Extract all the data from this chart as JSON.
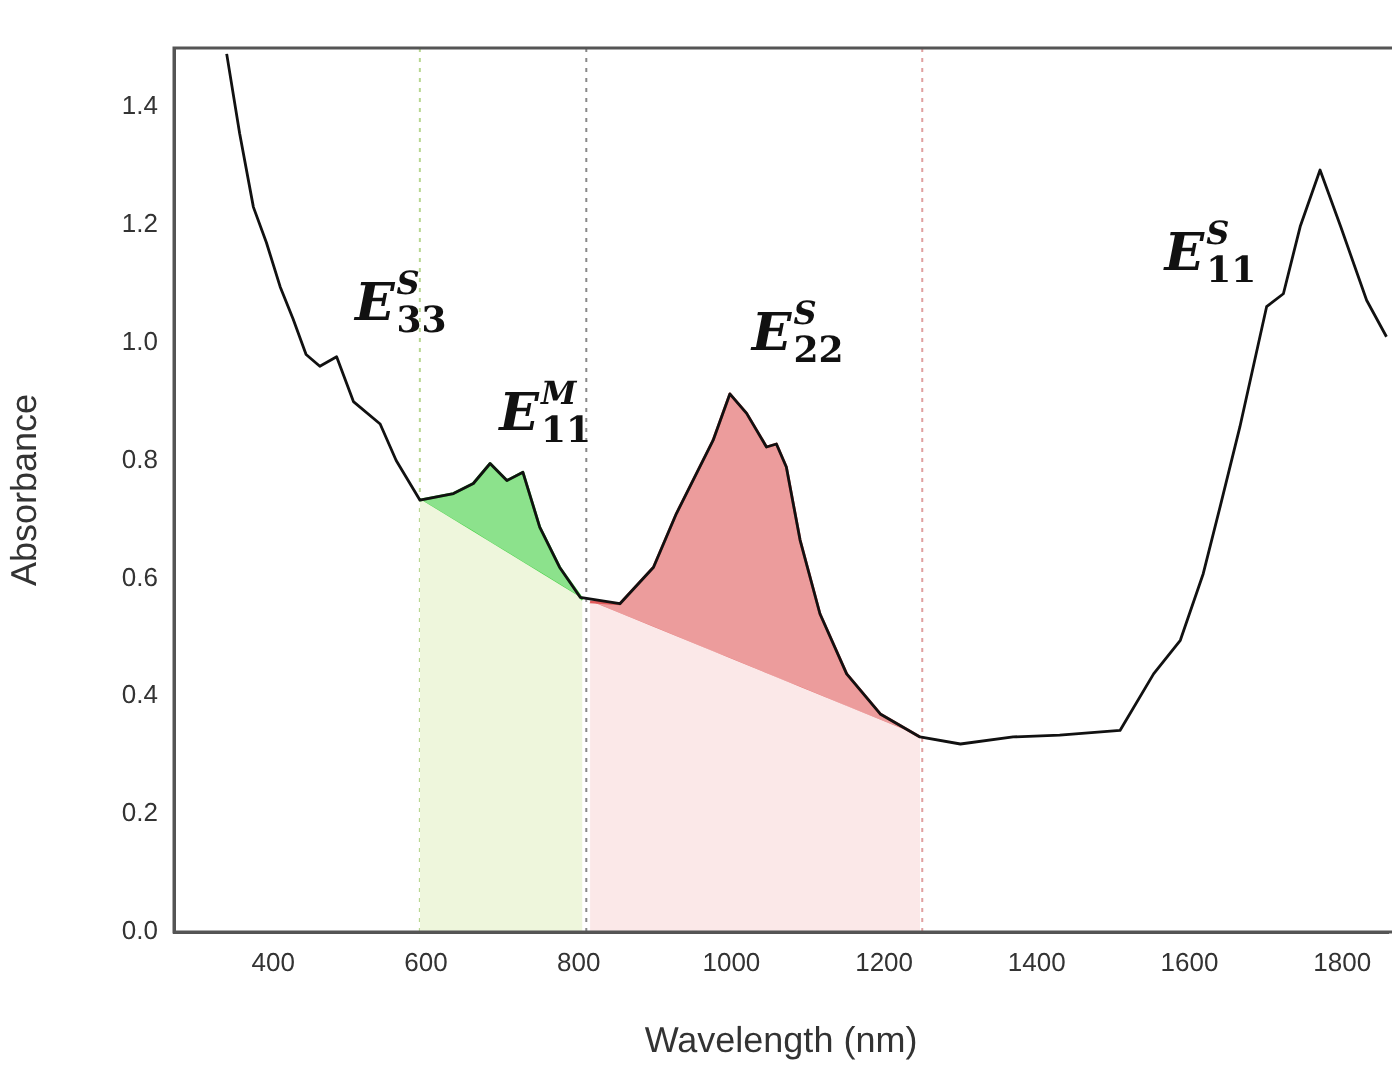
{
  "chart_data": {
    "type": "line",
    "xlabel": "Wavelength (nm)",
    "ylabel": "Absorbance",
    "xlim": [
      270,
      1860
    ],
    "ylim": [
      0,
      1.5
    ],
    "xticks": [
      400,
      600,
      800,
      1000,
      1200,
      1400,
      1600,
      1800
    ],
    "yticks": [
      {
        "value": 0,
        "label": "0.0"
      },
      0.2,
      0.4,
      0.6,
      0.8,
      {
        "value": 1,
        "label": "1.0"
      },
      1.2,
      1.4
    ],
    "grid": false,
    "series": [
      {
        "type": "area",
        "color": "#eef6dc",
        "x": [
          592,
          805
        ],
        "values": [
          0.733,
          0.564
        ]
      },
      {
        "type": "area",
        "color": "#fbe8e8",
        "x": [
          815,
          1247
        ],
        "values": [
          0.56,
          0.331
        ]
      },
      {
        "color": "#3fcf3f",
        "x": [
          592,
          636,
          662,
          684,
          706,
          727,
          749,
          775,
          805
        ],
        "values": [
          0.733,
          0.744,
          0.761,
          0.795,
          0.766,
          0.78,
          0.687,
          0.619,
          0.564
        ],
        "lower": [
          0.733,
          0.698,
          0.678,
          0.66,
          0.643,
          0.626,
          0.609,
          0.588,
          0.564
        ],
        "upper": [
          0.733,
          0.744,
          0.761,
          0.795,
          0.766,
          0.78,
          0.687,
          0.619,
          0.564
        ]
      },
      {
        "color": "#e05a5a",
        "x": [
          815,
          854,
          898,
          928,
          976,
          998,
          1020,
          1046,
          1059,
          1072,
          1090,
          1116,
          1151,
          1195,
          1247
        ],
        "values": [
          0.56,
          0.557,
          0.619,
          0.71,
          0.834,
          0.913,
          0.88,
          0.823,
          0.828,
          0.789,
          0.665,
          0.54,
          0.438,
          0.37,
          0.331
        ],
        "lower": [
          0.56,
          0.539,
          0.516,
          0.5,
          0.474,
          0.463,
          0.451,
          0.437,
          0.43,
          0.423,
          0.414,
          0.4,
          0.381,
          0.358,
          0.331
        ],
        "upper": [
          0.56,
          0.557,
          0.619,
          0.71,
          0.834,
          0.913,
          0.88,
          0.823,
          0.828,
          0.789,
          0.665,
          0.54,
          0.438,
          0.37,
          0.331
        ]
      },
      {
        "color": "#111111",
        "x": [
          339,
          356,
          374,
          391,
          409,
          426,
          443,
          461,
          483,
          505,
          540,
          561,
          592,
          636,
          662,
          684,
          706,
          727,
          749,
          775,
          802,
          854,
          898,
          928,
          976,
          998,
          1020,
          1046,
          1059,
          1072,
          1090,
          1116,
          1151,
          1195,
          1247,
          1300,
          1369,
          1430,
          1509,
          1553,
          1588,
          1618,
          1640,
          1666,
          1701,
          1723,
          1745,
          1771,
          1798,
          1832,
          1858
        ],
        "values": [
          1.49,
          1.355,
          1.23,
          1.17,
          1.095,
          1.04,
          0.98,
          0.96,
          0.976,
          0.9,
          0.862,
          0.8,
          0.733,
          0.744,
          0.761,
          0.795,
          0.766,
          0.78,
          0.687,
          0.619,
          0.568,
          0.557,
          0.619,
          0.71,
          0.834,
          0.913,
          0.88,
          0.823,
          0.828,
          0.789,
          0.665,
          0.54,
          0.438,
          0.37,
          0.331,
          0.319,
          0.331,
          0.334,
          0.342,
          0.438,
          0.495,
          0.608,
          0.721,
          0.857,
          1.061,
          1.083,
          1.197,
          1.293,
          1.197,
          1.072,
          1.01
        ]
      }
    ],
    "ref_lines": [
      {
        "axis": "x",
        "value": 592,
        "color": "#b8d890",
        "line_style": "dotted"
      },
      {
        "axis": "x",
        "value": 810,
        "color": "#888888",
        "line_style": "dotted"
      },
      {
        "axis": "x",
        "value": 1250,
        "color": "#e0a0a0",
        "line_style": "dotted"
      }
    ],
    "annotations": [
      "E$^{S}$$_{33}$",
      "E$^{M}$$_{11}$",
      "E$^{S}$$_{22}$",
      "E$^{S}$$_{11}$"
    ]
  }
}
